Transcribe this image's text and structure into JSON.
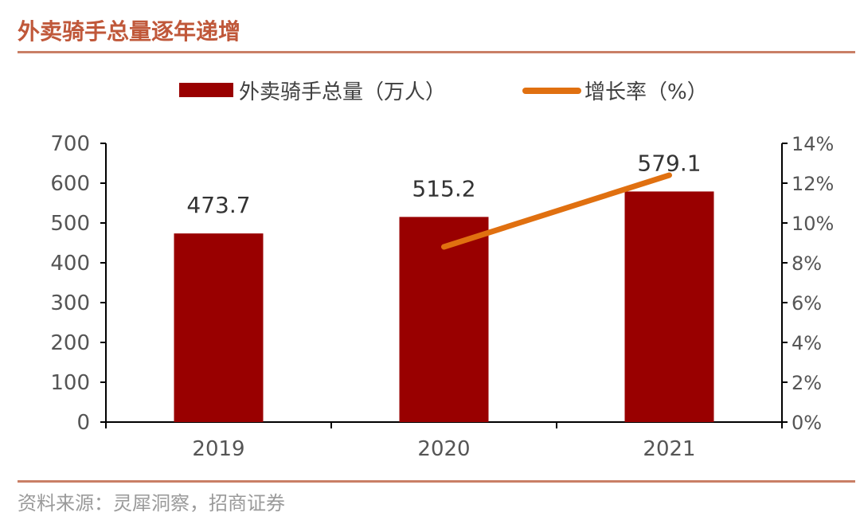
{
  "header": {
    "title": "外卖骑手总量逐年递增"
  },
  "footer": {
    "source": "资料来源：灵犀洞察，招商证券"
  },
  "chart_data": {
    "type": "bar",
    "categories": [
      "2019",
      "2020",
      "2021"
    ],
    "series": [
      {
        "name": "外卖骑手总量（万人）",
        "type": "bar",
        "axis": "left",
        "values": [
          473.7,
          515.2,
          579.1
        ],
        "data_labels": [
          "473.7",
          "515.2",
          "579.1"
        ],
        "color": "#990000"
      },
      {
        "name": "增长率（%）",
        "type": "line",
        "axis": "right",
        "values": [
          null,
          8.8,
          12.4
        ],
        "color": "#e07010"
      }
    ],
    "y_left": {
      "lim": [
        0,
        700
      ],
      "ticks": [
        "0",
        "100",
        "200",
        "300",
        "400",
        "500",
        "600",
        "700"
      ]
    },
    "y_right": {
      "lim": [
        0,
        14
      ],
      "ticks": [
        "0%",
        "2%",
        "4%",
        "6%",
        "8%",
        "10%",
        "12%",
        "14%"
      ]
    },
    "legend": "top",
    "grid": false
  }
}
